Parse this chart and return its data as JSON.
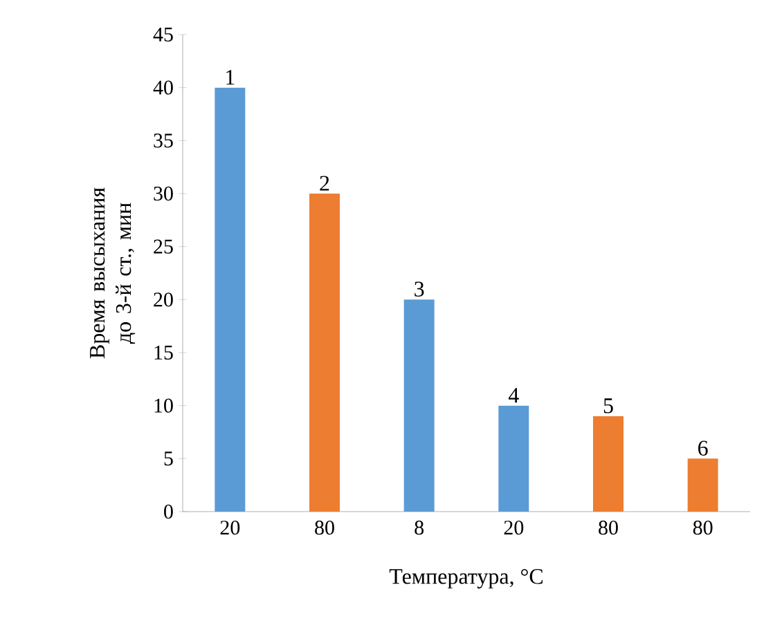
{
  "chart_data": {
    "type": "bar",
    "xlabel": "Температура, °C",
    "ylabel": "Время высыхания до 3-й ст., мин",
    "categories": [
      "20",
      "80",
      "8",
      "20",
      "80",
      "80"
    ],
    "values": [
      40,
      30,
      20,
      10,
      9,
      5
    ],
    "colors": [
      "#5b9bd5",
      "#ed7d31",
      "#5b9bd5",
      "#5b9bd5",
      "#ed7d31",
      "#ed7d31"
    ],
    "annotations": [
      "1",
      "2",
      "3",
      "4",
      "5",
      "6"
    ],
    "ylim": [
      0,
      45
    ],
    "yticks": [
      0,
      5,
      10,
      15,
      20,
      25,
      30,
      35,
      40,
      45
    ],
    "grid": false
  }
}
